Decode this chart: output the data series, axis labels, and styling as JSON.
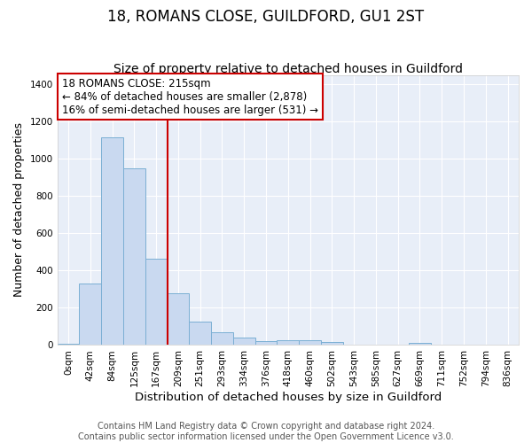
{
  "title": "18, ROMANS CLOSE, GUILDFORD, GU1 2ST",
  "subtitle": "Size of property relative to detached houses in Guildford",
  "xlabel": "Distribution of detached houses by size in Guildford",
  "ylabel": "Number of detached properties",
  "categories": [
    "0sqm",
    "42sqm",
    "84sqm",
    "125sqm",
    "167sqm",
    "209sqm",
    "251sqm",
    "293sqm",
    "334sqm",
    "376sqm",
    "418sqm",
    "460sqm",
    "502sqm",
    "543sqm",
    "585sqm",
    "627sqm",
    "669sqm",
    "711sqm",
    "752sqm",
    "794sqm",
    "836sqm"
  ],
  "values": [
    8,
    328,
    1113,
    947,
    463,
    280,
    128,
    70,
    42,
    22,
    25,
    25,
    18,
    0,
    0,
    0,
    12,
    0,
    0,
    0,
    0
  ],
  "bar_color": "#c9d9f0",
  "bar_edge_color": "#7bafd4",
  "vline_color": "#cc0000",
  "vline_x_index": 5,
  "annotation_text_line1": "18 ROMANS CLOSE: 215sqm",
  "annotation_text_line2": "← 84% of detached houses are smaller (2,878)",
  "annotation_text_line3": "16% of semi-detached houses are larger (531) →",
  "annotation_box_color": "#cc0000",
  "ylim": [
    0,
    1450
  ],
  "yticks": [
    0,
    200,
    400,
    600,
    800,
    1000,
    1200,
    1400
  ],
  "footer_line1": "Contains HM Land Registry data © Crown copyright and database right 2024.",
  "footer_line2": "Contains public sector information licensed under the Open Government Licence v3.0.",
  "fig_bg_color": "#ffffff",
  "plot_bg_color": "#e8eef8",
  "grid_color": "#ffffff",
  "title_fontsize": 12,
  "subtitle_fontsize": 10,
  "axis_label_fontsize": 9,
  "tick_fontsize": 7.5,
  "annotation_fontsize": 8.5,
  "footer_fontsize": 7
}
